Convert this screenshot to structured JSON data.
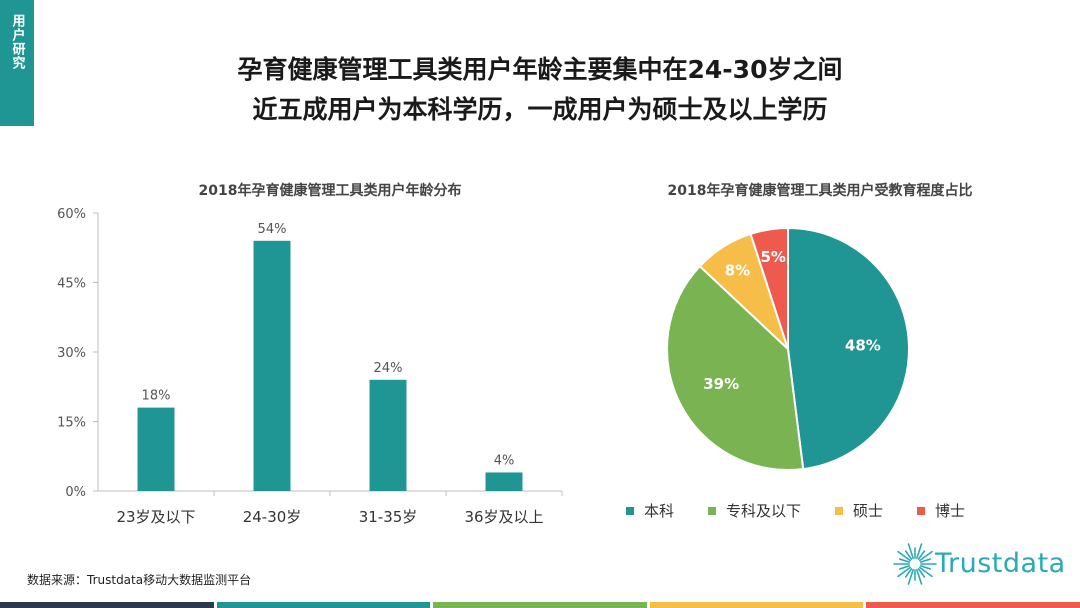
{
  "section_tab": "用户研究",
  "headline": {
    "line1": "孕育健康管理工具类用户年龄主要集中在24-30岁之间",
    "line2": "近五成用户为本科学历，一成用户为硕士及以上学历"
  },
  "colors": {
    "teal": "#1f9693",
    "green": "#7ab352",
    "yellow": "#f6be48",
    "red": "#ef5a4e",
    "dark": "#2b3a4a"
  },
  "chart_data": [
    {
      "type": "bar",
      "title": "2018年孕育健康管理工具类用户年龄分布",
      "categories": [
        "23岁及以下",
        "24-30岁",
        "31-35岁",
        "36岁及以上"
      ],
      "values": [
        18,
        54,
        24,
        4
      ],
      "value_labels": [
        "18%",
        "54%",
        "24%",
        "4%"
      ],
      "y_ticks": [
        "0%",
        "15%",
        "30%",
        "45%",
        "60%"
      ],
      "ylim": [
        0,
        60
      ],
      "grid": false
    },
    {
      "type": "pie",
      "title": "2018年孕育健康管理工具类用户受教育程度占比",
      "slices": [
        {
          "label": "本科",
          "value": 48,
          "display": "48%",
          "color": "#1f9693"
        },
        {
          "label": "专科及以下",
          "value": 39,
          "display": "39%",
          "color": "#7ab352"
        },
        {
          "label": "硕士",
          "value": 8,
          "display": "8%",
          "color": "#f6be48"
        },
        {
          "label": "博士",
          "value": 5,
          "display": "5%",
          "color": "#ef5a4e"
        }
      ],
      "legend_position": "bottom"
    }
  ],
  "source": "数据来源：Trustdata移动大数据监测平台",
  "logo": {
    "text": "Trustdata",
    "icon": "starburst-icon"
  }
}
